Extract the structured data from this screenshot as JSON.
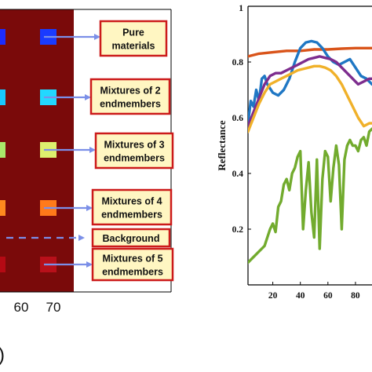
{
  "chart_data": [
    {
      "type": "heatmap",
      "x_tick_labels": [
        "60",
        "70"
      ],
      "partial_label": ")",
      "colors": {
        "background": "#7a0a0a",
        "arrow": "#7b8fe8",
        "box_border": "#cc1a1a",
        "box_fill": "#fff6c2"
      },
      "rows": [
        {
          "label": "Pure\nmaterials",
          "left_color": "#1d2cff",
          "right_color": "#1a3bff",
          "arrow_style": "solid"
        },
        {
          "label": "Mixtures of 2\nendmembers",
          "left_color": "#18c8ff",
          "right_color": "#22d8ff",
          "arrow_style": "solid"
        },
        {
          "label": "Mixtures of 3\nendmembers",
          "left_color": "#a9e86a",
          "right_color": "#ddf06e",
          "arrow_style": "solid"
        },
        {
          "label": "Mixtures of 4\nendmembers",
          "left_color": "#ff8a1e",
          "right_color": "#ff7a1a",
          "arrow_style": "solid"
        },
        {
          "label": "Background",
          "left_color": "",
          "right_color": "",
          "arrow_style": "dashed"
        },
        {
          "label": "Mixtures of 5\nendmembers",
          "left_color": "#b50a14",
          "right_color": "#b8101a",
          "arrow_style": "solid"
        }
      ]
    },
    {
      "type": "line",
      "xlabel": "",
      "ylabel": "Reflectance",
      "xlim": [
        2,
        92
      ],
      "ylim": [
        0,
        1
      ],
      "x_ticks": [
        20,
        40,
        60,
        80
      ],
      "y_ticks": [
        0.2,
        0.4,
        0.6,
        0.8
      ],
      "y_tick_labels": [
        "0.2",
        "0.4",
        "0.6",
        "0.8"
      ],
      "top_tick_label": "1",
      "series": [
        {
          "color": "#d9541a",
          "x": [
            2,
            10,
            20,
            30,
            40,
            50,
            60,
            70,
            80,
            92
          ],
          "y": [
            0.82,
            0.83,
            0.835,
            0.84,
            0.84,
            0.845,
            0.845,
            0.848,
            0.85,
            0.85
          ]
        },
        {
          "color": "#1f77c4",
          "x": [
            2,
            4,
            6,
            8,
            10,
            12,
            14,
            16,
            20,
            24,
            28,
            32,
            36,
            40,
            44,
            48,
            52,
            56,
            60,
            64,
            68,
            72,
            76,
            80,
            84,
            88,
            92
          ],
          "y": [
            0.58,
            0.66,
            0.64,
            0.7,
            0.66,
            0.74,
            0.75,
            0.72,
            0.69,
            0.68,
            0.7,
            0.74,
            0.8,
            0.85,
            0.87,
            0.875,
            0.87,
            0.85,
            0.82,
            0.8,
            0.79,
            0.8,
            0.81,
            0.78,
            0.75,
            0.74,
            0.72
          ]
        },
        {
          "color": "#7d2d8e",
          "x": [
            2,
            6,
            10,
            14,
            18,
            22,
            26,
            30,
            34,
            38,
            42,
            46,
            50,
            54,
            58,
            62,
            66,
            70,
            74,
            78,
            82,
            86,
            90,
            92
          ],
          "y": [
            0.57,
            0.62,
            0.67,
            0.72,
            0.75,
            0.76,
            0.76,
            0.77,
            0.78,
            0.79,
            0.8,
            0.81,
            0.815,
            0.82,
            0.815,
            0.81,
            0.8,
            0.78,
            0.76,
            0.74,
            0.72,
            0.73,
            0.74,
            0.74
          ]
        },
        {
          "color": "#f0b12a",
          "x": [
            2,
            6,
            10,
            14,
            18,
            22,
            26,
            30,
            34,
            38,
            42,
            46,
            50,
            54,
            58,
            62,
            66,
            70,
            74,
            78,
            82,
            86,
            90,
            92
          ],
          "y": [
            0.55,
            0.6,
            0.65,
            0.69,
            0.72,
            0.73,
            0.74,
            0.75,
            0.76,
            0.77,
            0.775,
            0.78,
            0.785,
            0.785,
            0.78,
            0.77,
            0.75,
            0.72,
            0.68,
            0.64,
            0.6,
            0.57,
            0.58,
            0.58
          ]
        },
        {
          "color": "#72ab2e",
          "x": [
            2,
            6,
            10,
            14,
            16,
            18,
            20,
            22,
            24,
            26,
            28,
            30,
            32,
            34,
            36,
            38,
            40,
            42,
            44,
            46,
            48,
            50,
            52,
            54,
            56,
            58,
            60,
            62,
            64,
            66,
            68,
            70,
            72,
            74,
            76,
            78,
            80,
            82,
            84,
            86,
            88,
            90,
            92
          ],
          "y": [
            0.08,
            0.1,
            0.12,
            0.14,
            0.17,
            0.2,
            0.22,
            0.19,
            0.28,
            0.3,
            0.36,
            0.38,
            0.34,
            0.4,
            0.42,
            0.46,
            0.48,
            0.2,
            0.34,
            0.44,
            0.26,
            0.17,
            0.45,
            0.13,
            0.38,
            0.48,
            0.46,
            0.3,
            0.42,
            0.5,
            0.43,
            0.2,
            0.45,
            0.5,
            0.52,
            0.5,
            0.5,
            0.48,
            0.52,
            0.53,
            0.5,
            0.55,
            0.56
          ]
        }
      ]
    }
  ]
}
